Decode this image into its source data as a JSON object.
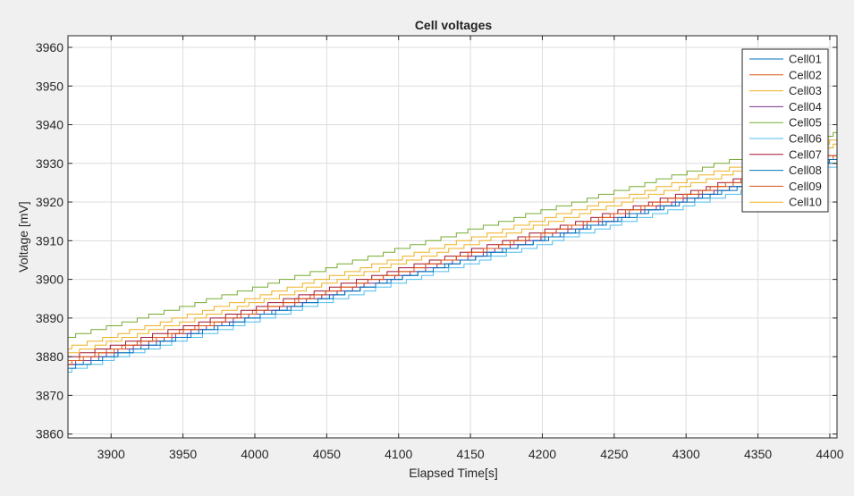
{
  "window": {
    "background": "#f0f0f0"
  },
  "chart_data": {
    "type": "line",
    "title": "Cell voltages",
    "xlabel": "Elapsed Time[s]",
    "ylabel": "Voltage [mV]",
    "xlim": [
      3870,
      4405
    ],
    "ylim": [
      3859,
      3963
    ],
    "xticks": [
      3900,
      3950,
      4000,
      4050,
      4100,
      4150,
      4200,
      4250,
      4300,
      4350,
      4400
    ],
    "yticks": [
      3860,
      3870,
      3880,
      3890,
      3900,
      3910,
      3920,
      3930,
      3940,
      3950,
      3960
    ],
    "grid": true,
    "legend_position": "top-right",
    "series": [
      {
        "name": "Cell01",
        "color": "#0072BD",
        "x": [
          3870,
          4405
        ],
        "y": [
          3878.0,
          3931.0
        ]
      },
      {
        "name": "Cell02",
        "color": "#D95319",
        "x": [
          3870,
          4405
        ],
        "y": [
          3879.0,
          3932.0
        ]
      },
      {
        "name": "Cell03",
        "color": "#EDB120",
        "x": [
          3870,
          4405
        ],
        "y": [
          3882.0,
          3936.0
        ]
      },
      {
        "name": "Cell04",
        "color": "#7E2F8E",
        "x": [
          3870,
          4405
        ],
        "y": [
          3878.5,
          3931.5
        ]
      },
      {
        "name": "Cell05",
        "color": "#77AC30",
        "x": [
          3870,
          4405
        ],
        "y": [
          3885.0,
          3938.0
        ]
      },
      {
        "name": "Cell06",
        "color": "#4DBEEE",
        "x": [
          3870,
          4405
        ],
        "y": [
          3876.0,
          3929.0
        ]
      },
      {
        "name": "Cell07",
        "color": "#A2142F",
        "x": [
          3870,
          4405
        ],
        "y": [
          3880.0,
          3933.0
        ]
      },
      {
        "name": "Cell08",
        "color": "#0072BD",
        "x": [
          3870,
          4405
        ],
        "y": [
          3877.0,
          3931.0
        ]
      },
      {
        "name": "Cell09",
        "color": "#D95319",
        "x": [
          3870,
          4405
        ],
        "y": [
          3878.0,
          3932.0
        ]
      },
      {
        "name": "Cell10",
        "color": "#EDB120",
        "x": [
          3870,
          4405
        ],
        "y": [
          3881.0,
          3935.0
        ]
      }
    ]
  }
}
